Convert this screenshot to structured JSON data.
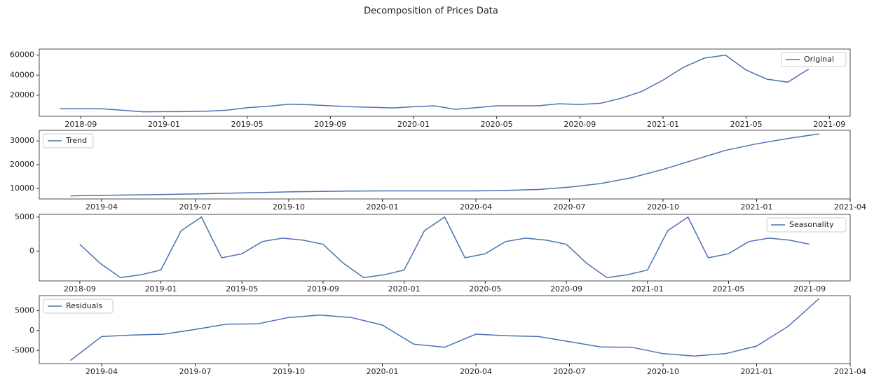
{
  "title": "Decomposition of Prices Data",
  "chart_data": [
    {
      "type": "line",
      "x": [
        "2018-08",
        "2018-09",
        "2018-10",
        "2018-11",
        "2018-12",
        "2019-01",
        "2019-02",
        "2019-03",
        "2019-04",
        "2019-05",
        "2019-06",
        "2019-07",
        "2019-08",
        "2019-09",
        "2019-10",
        "2019-11",
        "2019-12",
        "2020-01",
        "2020-02",
        "2020-03",
        "2020-04",
        "2020-05",
        "2020-06",
        "2020-07",
        "2020-08",
        "2020-09",
        "2020-10",
        "2020-11",
        "2020-12",
        "2021-01",
        "2021-02",
        "2021-03",
        "2021-04",
        "2021-05",
        "2021-06",
        "2021-07",
        "2021-08"
      ],
      "series": [
        {
          "name": "Original",
          "color": "#4c72b0",
          "values": [
            6500,
            6600,
            6500,
            5000,
            3500,
            3600,
            3700,
            4000,
            5000,
            7500,
            9000,
            11000,
            10500,
            9500,
            8500,
            8000,
            7300,
            8500,
            9500,
            6000,
            7500,
            9500,
            9500,
            9500,
            11500,
            10800,
            12000,
            17000,
            24000,
            35000,
            48000,
            57000,
            60000,
            45000,
            36000,
            33000,
            46000
          ]
        }
      ],
      "xlim": [
        "2018-07",
        "2021-10"
      ],
      "xticks": [
        "2018-09",
        "2019-01",
        "2019-05",
        "2019-09",
        "2020-01",
        "2020-05",
        "2020-09",
        "2021-01",
        "2021-05",
        "2021-09"
      ],
      "ylim": [
        -1000,
        66000
      ],
      "yticks": [
        20000,
        40000,
        60000
      ],
      "legend": "upper right"
    },
    {
      "type": "line",
      "x": [
        "2019-03",
        "2019-04",
        "2019-05",
        "2019-06",
        "2019-07",
        "2019-08",
        "2019-09",
        "2019-10",
        "2019-11",
        "2019-12",
        "2020-01",
        "2020-02",
        "2020-03",
        "2020-04",
        "2020-05",
        "2020-06",
        "2020-07",
        "2020-08",
        "2020-09",
        "2020-10",
        "2020-11",
        "2020-12",
        "2021-01",
        "2021-02",
        "2021-03"
      ],
      "series": [
        {
          "name": "Trend",
          "color": "#4c72b0",
          "values": [
            6800,
            7000,
            7200,
            7400,
            7600,
            7900,
            8200,
            8500,
            8700,
            8800,
            8900,
            8900,
            8900,
            8900,
            9100,
            9500,
            10500,
            12000,
            14500,
            18000,
            22000,
            26000,
            28800,
            31000,
            33000
          ]
        }
      ],
      "xlim": [
        "2019-02",
        "2021-04"
      ],
      "xticks": [
        "2019-04",
        "2019-07",
        "2019-10",
        "2020-01",
        "2020-04",
        "2020-07",
        "2020-10",
        "2021-01",
        "2021-04"
      ],
      "ylim": [
        5500,
        34500
      ],
      "yticks": [
        10000,
        20000,
        30000
      ],
      "legend": "upper left"
    },
    {
      "type": "line",
      "x": [
        "2018-09",
        "2018-10",
        "2018-11",
        "2018-12",
        "2019-01",
        "2019-02",
        "2019-03",
        "2019-04",
        "2019-05",
        "2019-06",
        "2019-07",
        "2019-08",
        "2019-09",
        "2019-10",
        "2019-11",
        "2019-12",
        "2020-01",
        "2020-02",
        "2020-03",
        "2020-04",
        "2020-05",
        "2020-06",
        "2020-07",
        "2020-08",
        "2020-09",
        "2020-10",
        "2020-11",
        "2020-12",
        "2021-01",
        "2021-02",
        "2021-03",
        "2021-04",
        "2021-05",
        "2021-06",
        "2021-07",
        "2021-08",
        "2021-09"
      ],
      "series": [
        {
          "name": "Seasonality",
          "color": "#4c72b0",
          "values": [
            1000,
            -1800,
            -3900,
            -3500,
            -2800,
            3000,
            5000,
            -1000,
            -400,
            1400,
            1900,
            1600,
            1000,
            -1800,
            -3900,
            -3500,
            -2800,
            3000,
            5000,
            -1000,
            -400,
            1400,
            1900,
            1600,
            1000,
            -1800,
            -3900,
            -3500,
            -2800,
            3000,
            5000,
            -1000,
            -400,
            1400,
            1900,
            1600,
            1000
          ]
        }
      ],
      "xlim": [
        "2018-07",
        "2021-11"
      ],
      "xticks": [
        "2018-09",
        "2019-01",
        "2019-05",
        "2019-09",
        "2020-01",
        "2020-05",
        "2020-09",
        "2021-01",
        "2021-05",
        "2021-09"
      ],
      "ylim": [
        -4400,
        5400
      ],
      "yticks": [
        0,
        5000
      ],
      "legend": "upper right"
    },
    {
      "type": "line",
      "x": [
        "2019-03",
        "2019-04",
        "2019-05",
        "2019-06",
        "2019-07",
        "2019-08",
        "2019-09",
        "2019-10",
        "2019-11",
        "2019-12",
        "2020-01",
        "2020-02",
        "2020-03",
        "2020-04",
        "2020-05",
        "2020-06",
        "2020-07",
        "2020-08",
        "2020-09",
        "2020-10",
        "2020-11",
        "2020-12",
        "2021-01",
        "2021-02",
        "2021-03"
      ],
      "series": [
        {
          "name": "Residuals",
          "color": "#4c72b0",
          "values": [
            -7500,
            -1500,
            -1100,
            -900,
            300,
            1600,
            1700,
            3300,
            3900,
            3300,
            1400,
            -3400,
            -4200,
            -900,
            -1300,
            -1500,
            -2800,
            -4100,
            -4200,
            -5800,
            -6400,
            -5800,
            -3900,
            1000,
            8000
          ]
        }
      ],
      "xlim": [
        "2019-02",
        "2021-04"
      ],
      "xticks": [
        "2019-04",
        "2019-07",
        "2019-10",
        "2020-01",
        "2020-04",
        "2020-07",
        "2020-10",
        "2021-01",
        "2021-04"
      ],
      "ylim": [
        -8300,
        8800
      ],
      "yticks": [
        -5000,
        0,
        5000
      ],
      "legend": "upper left"
    }
  ]
}
